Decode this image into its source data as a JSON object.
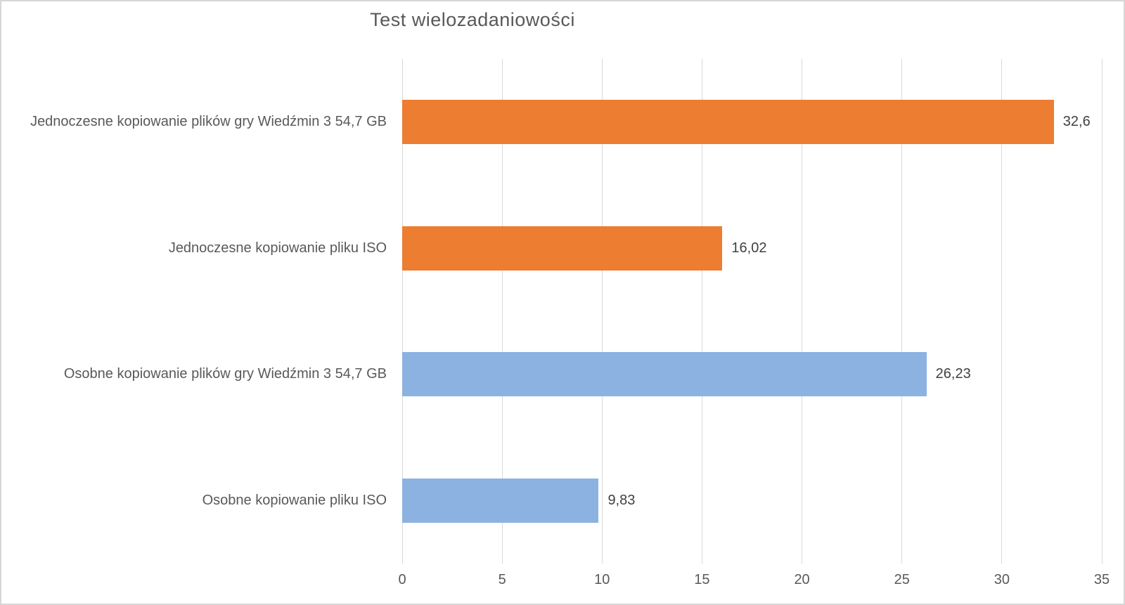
{
  "chart_data": {
    "type": "bar",
    "orientation": "horizontal",
    "title": "Test wielozadaniowości",
    "categories": [
      "Jednoczesne kopiowanie plików gry Wiedźmin 3 54,7 GB",
      "Jednoczesne kopiowanie pliku ISO",
      "Osobne kopiowanie plików gry Wiedźmin 3 54,7 GB",
      "Osobne kopiowanie pliku ISO"
    ],
    "values": [
      32.6,
      16.02,
      26.23,
      9.83
    ],
    "value_labels": [
      "32,6",
      "16,02",
      "26,23",
      "9,83"
    ],
    "bar_colors": [
      "#ED7D31",
      "#ED7D31",
      "#8CB2E2",
      "#8CB2E2"
    ],
    "xlim": [
      0,
      35
    ],
    "xticks": [
      0,
      5,
      10,
      15,
      20,
      25,
      30,
      35
    ],
    "xtick_labels": [
      "0",
      "5",
      "10",
      "15",
      "20",
      "25",
      "30",
      "35"
    ],
    "xlabel": "",
    "ylabel": "",
    "grid": "vertical",
    "legend": "none"
  },
  "colors": {
    "gridline": "#d9d9d9",
    "title_text": "#595959",
    "axis_text": "#595959",
    "value_text": "#404040",
    "frame_border": "#d6d6d6",
    "background": "#ffffff"
  }
}
